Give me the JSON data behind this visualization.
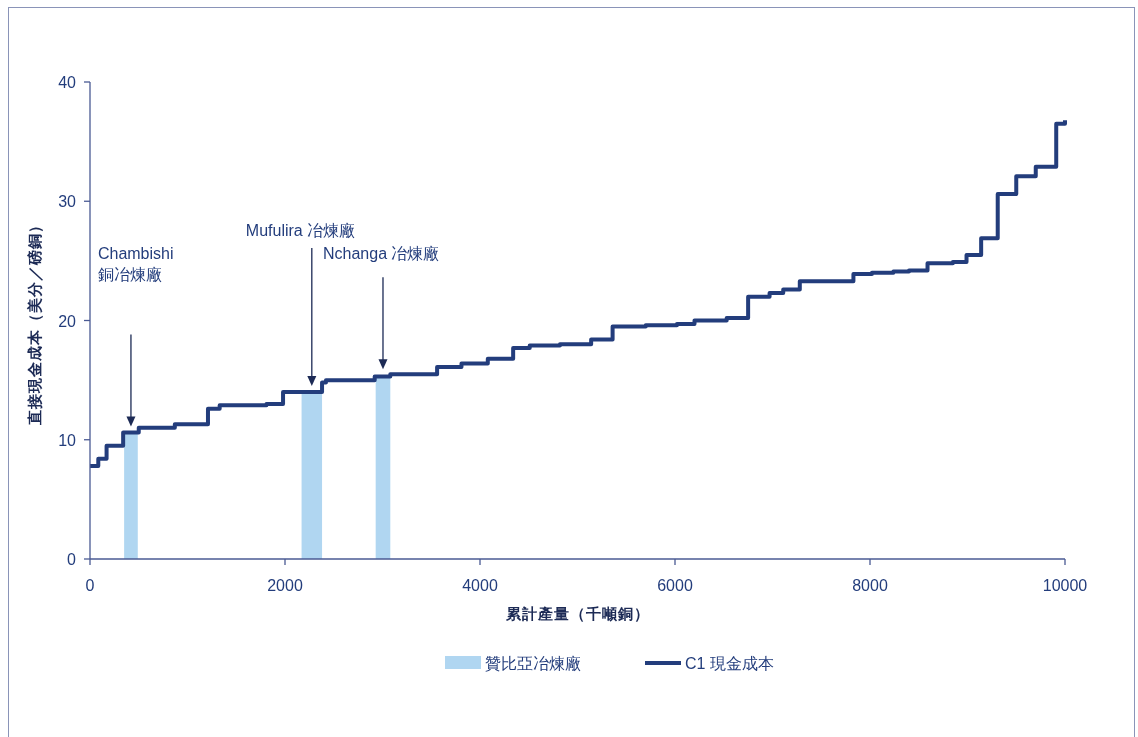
{
  "chart_data": {
    "type": "step",
    "xlabel": "累計產量（千噸銅）",
    "ylabel": "直接現金成本（美分／磅銅）",
    "xlim": [
      0,
      10000
    ],
    "ylim": [
      0,
      40
    ],
    "xticks": [
      0,
      2000,
      4000,
      6000,
      8000,
      10000
    ],
    "yticks": [
      0,
      10,
      20,
      30,
      40
    ],
    "legend": "bottom",
    "series": [
      {
        "name": "贊比亞冶煉廠",
        "type": "histogram",
        "color": "#b0d6f1",
        "bins": [
          350,
          490,
          2170,
          2380,
          2930,
          3080
        ],
        "values": [
          10.6,
          null,
          14.0,
          null,
          15.4
        ]
      },
      {
        "name": "C1 現金成本",
        "color": "#233d7c",
        "x": [
          0,
          85,
          170,
          340,
          500,
          870,
          1210,
          1330,
          1810,
          1980,
          2380,
          2420,
          2920,
          3080,
          3560,
          3810,
          4080,
          4340,
          4510,
          4820,
          5140,
          5360,
          5700,
          6020,
          6200,
          6530,
          6750,
          6970,
          7110,
          7280,
          7830,
          8020,
          8240,
          8400,
          8590,
          8850,
          8990,
          9140,
          9310,
          9500,
          9700,
          9910,
          10000
        ],
        "values": [
          7.8,
          8.4,
          9.5,
          10.6,
          11.0,
          11.3,
          12.6,
          12.9,
          13.0,
          14.0,
          14.8,
          15.0,
          15.3,
          15.5,
          16.1,
          16.4,
          16.8,
          17.7,
          17.9,
          18.0,
          18.4,
          19.5,
          19.6,
          19.7,
          20.0,
          20.2,
          22.0,
          22.3,
          22.6,
          23.3,
          23.9,
          24.0,
          24.1,
          24.2,
          24.8,
          24.9,
          25.5,
          26.9,
          30.6,
          32.1,
          32.9,
          36.5,
          36.8
        ]
      }
    ],
    "annotations": [
      "Chambishi\n銅冶煉廠",
      "Mufulira 冶煉廠",
      "Nchanga 冶煉廠"
    ]
  }
}
